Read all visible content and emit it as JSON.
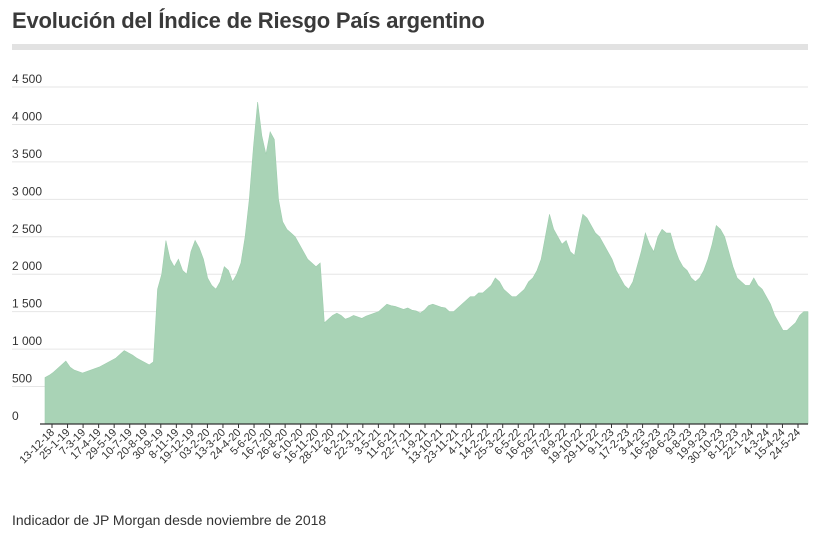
{
  "header": {
    "title": "Evolución del Índice de Riesgo País argentino"
  },
  "footer": {
    "note": "Indicador de JP Morgan desde noviembre de 2018"
  },
  "chart_data": {
    "type": "area",
    "title": "Evolución del Índice de Riesgo País argentino",
    "xlabel": "",
    "ylabel": "",
    "ylim": [
      0,
      4500
    ],
    "yticks": [
      0,
      500,
      1000,
      1500,
      2000,
      2500,
      3000,
      3500,
      4000,
      4500
    ],
    "ytick_labels": [
      "0",
      "500",
      "1 000",
      "1 500",
      "2 000",
      "2 500",
      "3 000",
      "3 500",
      "4 000",
      "4 500"
    ],
    "grid": "horizontal",
    "legend": "none",
    "color": "#a9d3b6",
    "x_tick_labels": [
      "13-12-18",
      "25-1-19",
      "7-3-19",
      "17-4-19",
      "29-5-19",
      "10-7-19",
      "20-8-19",
      "30-9-19",
      "8-11-19",
      "19-12-19",
      "03-2-20",
      "13-3-20",
      "24-4-20",
      "5-6-20",
      "16-7-20",
      "26-8-20",
      "6-10-20",
      "16-11-20",
      "28-12-20",
      "8-2-21",
      "22-3-21",
      "3-5-21",
      "11-6-21",
      "22-7-21",
      "1-9-21",
      "13-10-21",
      "23-11-21",
      "4-1-22",
      "14-2-22",
      "25-3-22",
      "6-5-22",
      "16-6-22",
      "29-7-22",
      "8-9-22",
      "19-10-22",
      "29-11-22",
      "9-1-23",
      "17-2-23",
      "3-4-23",
      "16-5-23",
      "28-6-23",
      "9-8-23",
      "19-9-23",
      "30-10-23",
      "8-12-23",
      "22-1-24",
      "4-3-24",
      "15-4-24",
      "24-5-24"
    ],
    "series": [
      {
        "values": [
          620,
          650,
          690,
          740,
          790,
          840,
          760,
          720,
          700,
          680,
          700,
          720,
          740,
          760,
          790,
          820,
          850,
          880,
          930,
          980,
          950,
          920,
          880,
          850,
          820,
          790,
          830,
          1800,
          2000,
          2450,
          2200,
          2100,
          2200,
          2050,
          2000,
          2300,
          2450,
          2350,
          2200,
          1950,
          1850,
          1800,
          1900,
          2100,
          2050,
          1900,
          2000,
          2150,
          2500,
          3000,
          3700,
          4300,
          3850,
          3600,
          3900,
          3800,
          3000,
          2700,
          2600,
          2550,
          2500,
          2400,
          2300,
          2200,
          2150,
          2100,
          2150,
          1350,
          1400,
          1450,
          1480,
          1450,
          1400,
          1420,
          1450,
          1430,
          1410,
          1440,
          1460,
          1480,
          1500,
          1550,
          1600,
          1580,
          1570,
          1550,
          1530,
          1550,
          1520,
          1510,
          1480,
          1520,
          1580,
          1600,
          1580,
          1560,
          1550,
          1500,
          1500,
          1550,
          1600,
          1650,
          1700,
          1700,
          1750,
          1750,
          1800,
          1850,
          1950,
          1900,
          1800,
          1750,
          1700,
          1700,
          1750,
          1800,
          1900,
          1950,
          2050,
          2200,
          2500,
          2800,
          2600,
          2500,
          2400,
          2450,
          2300,
          2250,
          2550,
          2800,
          2750,
          2650,
          2550,
          2500,
          2400,
          2300,
          2200,
          2050,
          1950,
          1850,
          1800,
          1900,
          2100,
          2300,
          2550,
          2400,
          2300,
          2500,
          2600,
          2550,
          2550,
          2350,
          2200,
          2100,
          2050,
          1950,
          1900,
          1950,
          2050,
          2200,
          2400,
          2650,
          2600,
          2500,
          2300,
          2100,
          1950,
          1900,
          1850,
          1850,
          1950,
          1850,
          1800,
          1700,
          1600,
          1450,
          1350,
          1250,
          1250,
          1300,
          1350,
          1450,
          1500,
          1500
        ]
      }
    ]
  }
}
